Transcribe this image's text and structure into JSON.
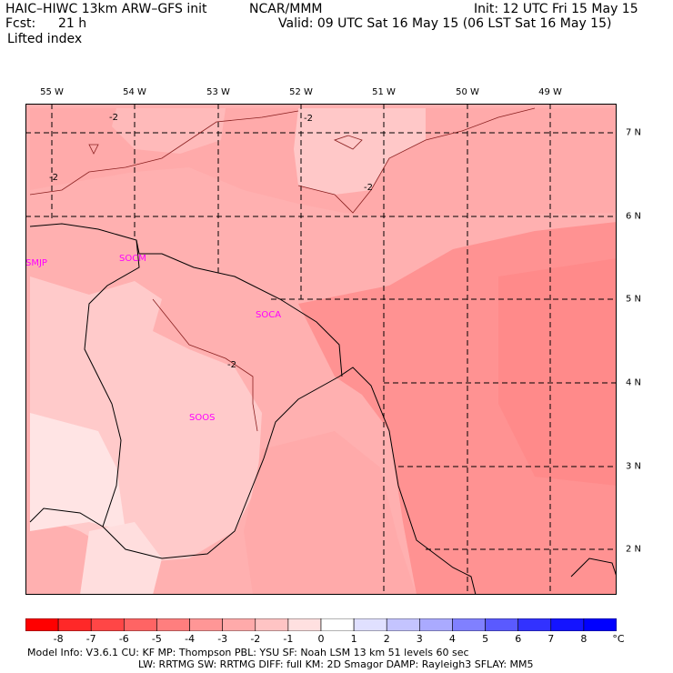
{
  "header": {
    "model_title": "HAIC–HIWC 13km ARW–GFS init",
    "center": "NCAR/MMM",
    "init": "Init: 12 UTC Fri 15 May 15",
    "fcst_label": "Fcst:",
    "fcst_value": "21 h",
    "valid": "Valid: 09 UTC Sat 16 May 15 (06 LST Sat 16 May 15)",
    "field": "Lifted index"
  },
  "map": {
    "longitude_labels": [
      "55 W",
      "54 W",
      "53 W",
      "52 W",
      "51 W",
      "50 W",
      "49 W"
    ],
    "latitude_labels": [
      "7 N",
      "6 N",
      "5 N",
      "4 N",
      "3 N",
      "2 N"
    ],
    "stations": [
      "SMJP",
      "SOCM",
      "SOCA",
      "SOOS"
    ],
    "contour_labels": [
      "-2",
      "-2",
      "-2",
      "-2",
      "-2"
    ]
  },
  "colorbar": {
    "labels": [
      "-8",
      "-7",
      "-6",
      "-5",
      "-4",
      "-3",
      "-2",
      "-1",
      "0",
      "1",
      "2",
      "3",
      "4",
      "5",
      "6",
      "7",
      "8"
    ],
    "unit": "°C",
    "colors": [
      "#ff0000",
      "#ff2828",
      "#ff4646",
      "#ff6464",
      "#ff7e7e",
      "#ff9696",
      "#ffaaaa",
      "#ffc4c4",
      "#ffe0e0",
      "#ffffff",
      "#e0e0ff",
      "#c4c4ff",
      "#aaaaff",
      "#8080ff",
      "#5a5aff",
      "#3232ff",
      "#1414ff",
      "#0000ff"
    ]
  },
  "footer": {
    "line1": "Model Info: V3.6.1    CU: KF      MP: Thompson      PBL: YSU        SF: Noah LSM      13 km    51 levels   60 sec",
    "line2": "LW: RRTMG    SW: RRTMG   DIFF: full    KM: 2D Smagor DAMP: Rayleigh3   SFLAY: MM5"
  }
}
